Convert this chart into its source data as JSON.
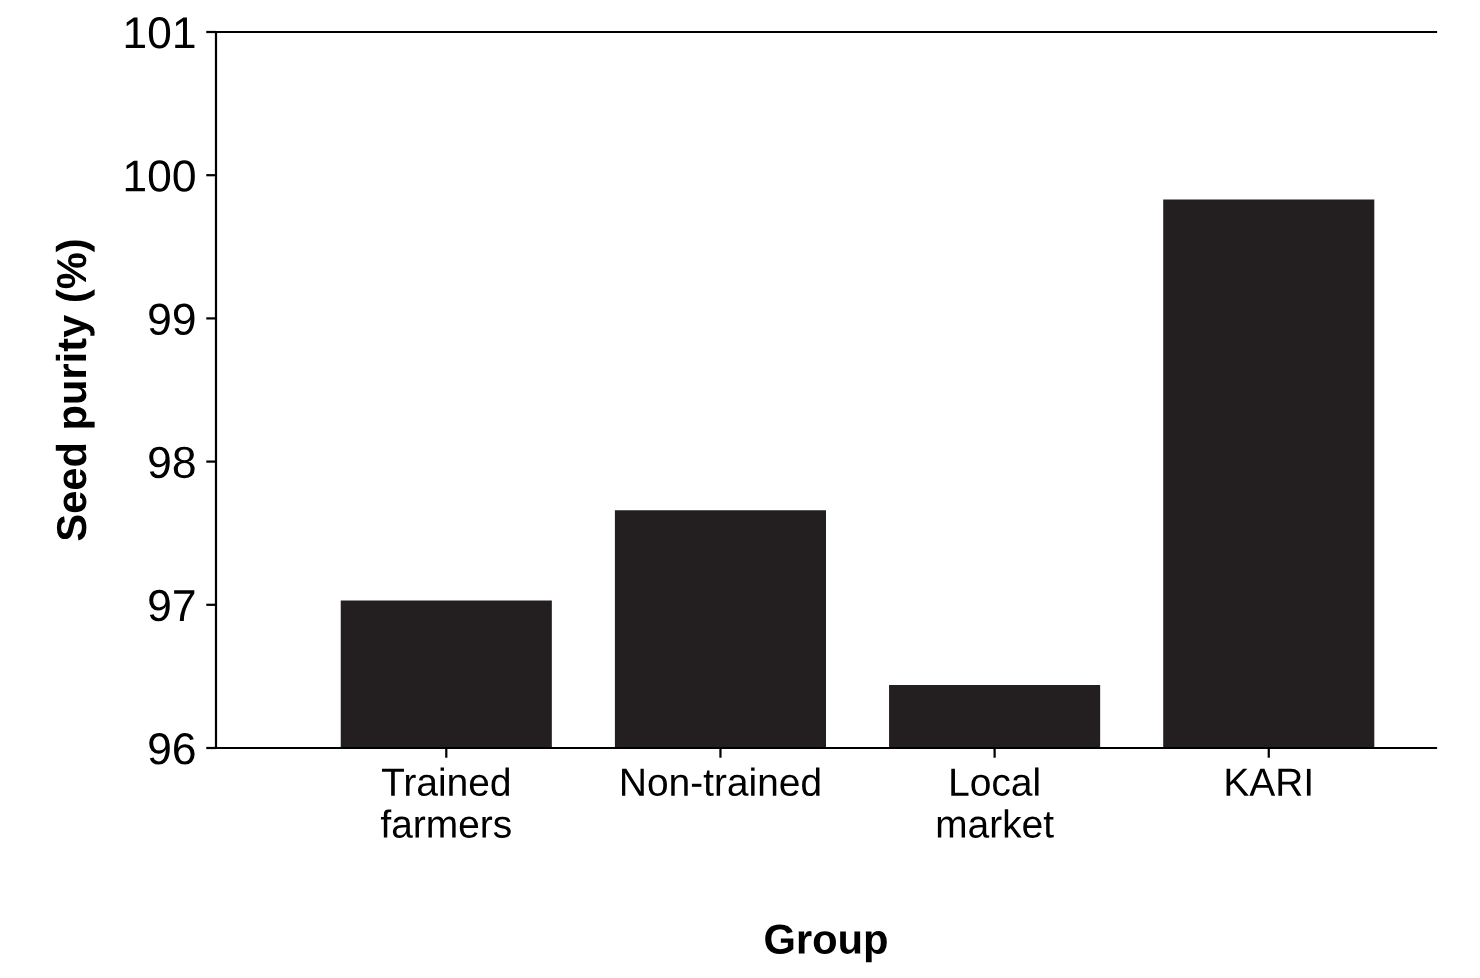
{
  "chart_data": {
    "type": "bar",
    "xlabel": "Group",
    "ylabel": "Seed purity (%)",
    "categories": [
      "Trained\nfarmers",
      "Non-trained",
      "Local\nmarket",
      "KARI"
    ],
    "values": [
      97.03,
      97.66,
      96.44,
      99.83
    ],
    "color": "#231f20",
    "ylim": [
      96,
      101
    ],
    "yticks": [
      96,
      97,
      98,
      99,
      100,
      101
    ],
    "grid": false
  }
}
